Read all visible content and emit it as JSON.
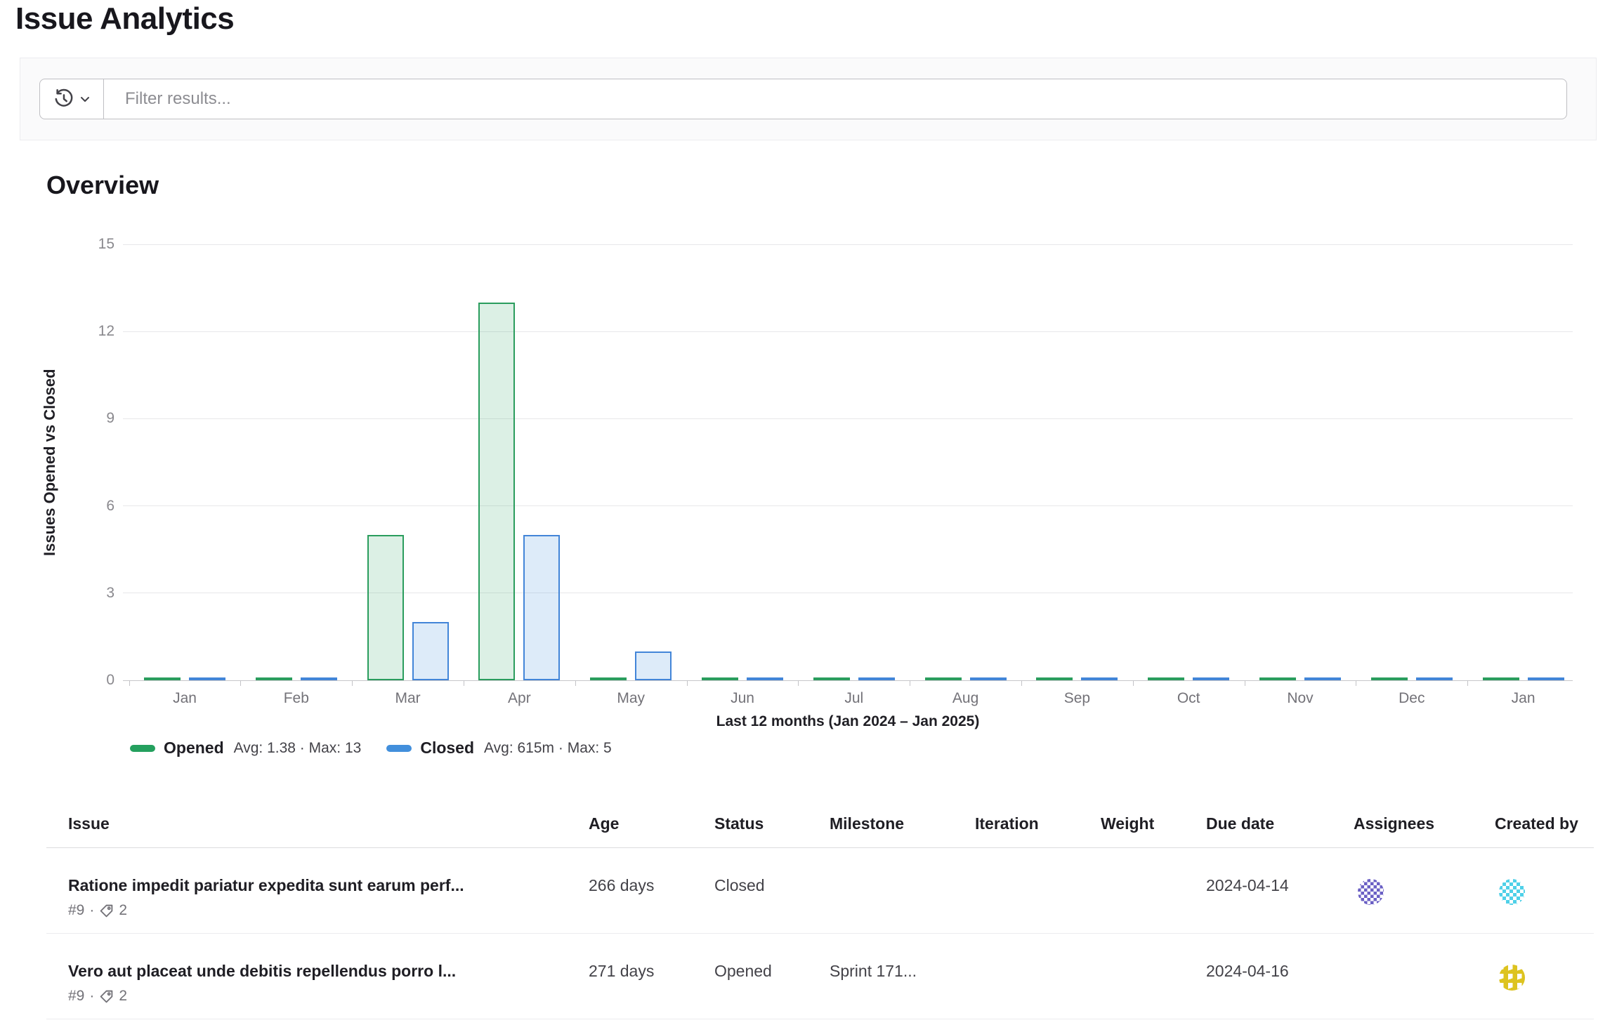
{
  "page_title": "Issue Analytics",
  "filter": {
    "placeholder": "Filter results..."
  },
  "overview_heading": "Overview",
  "chart_data": {
    "type": "bar",
    "title": "Overview",
    "ylabel": "Issues Opened vs Closed",
    "xlabel": "Last 12 months (Jan 2024 – Jan 2025)",
    "categories": [
      "Jan",
      "Feb",
      "Mar",
      "Apr",
      "May",
      "Jun",
      "Jul",
      "Aug",
      "Sep",
      "Oct",
      "Nov",
      "Dec",
      "Jan"
    ],
    "series": [
      {
        "name": "Opened",
        "values": [
          0,
          0,
          5,
          13,
          0,
          0,
          0,
          0,
          0,
          0,
          0,
          0,
          0
        ],
        "border_color": "#2a9d5d",
        "fill_color": "rgba(36,160,94,0.16)"
      },
      {
        "name": "Closed",
        "values": [
          0,
          0,
          2,
          5,
          1,
          0,
          0,
          0,
          0,
          0,
          0,
          0,
          0
        ],
        "border_color": "#4285d8",
        "fill_color": "rgba(66,143,220,0.18)"
      }
    ],
    "yticks": [
      0,
      3,
      6,
      9,
      12,
      15
    ],
    "ylim": [
      0,
      15
    ],
    "grid": true,
    "legend_position": "bottom-left",
    "legend": [
      {
        "label": "Opened",
        "stats": "Avg: 1.38 · Max: 13",
        "color": "#24a05e"
      },
      {
        "label": "Closed",
        "stats": "Avg: 615m · Max: 5",
        "color": "#428fdc"
      }
    ]
  },
  "table": {
    "columns": [
      "Issue",
      "Age",
      "Status",
      "Milestone",
      "Iteration",
      "Weight",
      "Due date",
      "Assignees",
      "Created by"
    ],
    "meta_separator": "·",
    "rows": [
      {
        "title": "Ratione impedit pariatur expedita sunt earum perf...",
        "ref": "#9",
        "label_count": "2",
        "age": "266 days",
        "status": "Closed",
        "milestone": "",
        "iteration": "",
        "weight": "",
        "due_date": "2024-04-14",
        "assignee": "purple-identicon",
        "created_by": "cyan-identicon"
      },
      {
        "title": "Vero aut placeat unde debitis repellendus porro l...",
        "ref": "#9",
        "label_count": "2",
        "age": "271 days",
        "status": "Opened",
        "milestone": "Sprint 171...",
        "iteration": "",
        "weight": "",
        "due_date": "2024-04-16",
        "assignee": "",
        "created_by": "yellow-identicon"
      }
    ]
  }
}
